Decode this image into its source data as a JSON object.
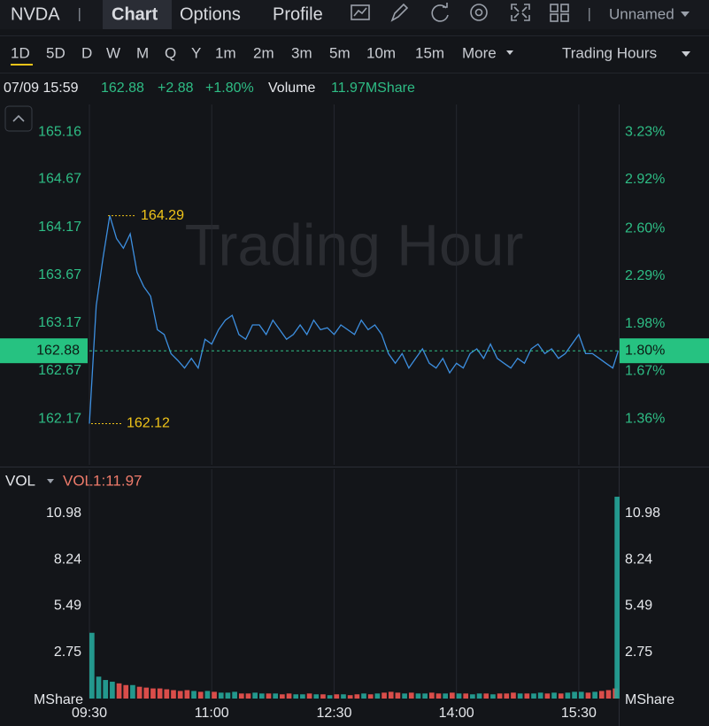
{
  "header": {
    "symbol": "NVDA",
    "tabs": [
      "Chart",
      "Options",
      "Profile"
    ],
    "layout": "Unnamed"
  },
  "toolbar": {
    "periods": [
      "1D",
      "5D",
      "D",
      "W",
      "M",
      "Q",
      "Y",
      "1m",
      "2m",
      "3m",
      "5m",
      "10m",
      "15m",
      "More"
    ],
    "session": "Trading Hours"
  },
  "quote": {
    "time": "07/09 15:59",
    "price": "162.88",
    "change": "+2.88",
    "change_pct": "+1.80%",
    "volume_label": "Volume",
    "volume": "11.97MShare"
  },
  "chart_data": [
    {
      "type": "line",
      "watermark": "Trading Hour",
      "color": "#3d8fe0",
      "x": [
        "09:30",
        "09:35",
        "09:40",
        "09:45",
        "09:50",
        "09:55",
        "10:00",
        "10:05",
        "10:10",
        "10:15",
        "10:20",
        "10:25",
        "10:30",
        "10:35",
        "10:40",
        "10:45",
        "10:50",
        "10:55",
        "11:00",
        "11:05",
        "11:10",
        "11:15",
        "11:20",
        "11:25",
        "11:30",
        "11:35",
        "11:40",
        "11:45",
        "11:50",
        "11:55",
        "12:00",
        "12:05",
        "12:10",
        "12:15",
        "12:20",
        "12:25",
        "12:30",
        "12:35",
        "12:40",
        "12:45",
        "12:50",
        "12:55",
        "13:00",
        "13:05",
        "13:10",
        "13:15",
        "13:20",
        "13:25",
        "13:30",
        "13:35",
        "13:40",
        "13:45",
        "13:50",
        "13:55",
        "14:00",
        "14:05",
        "14:10",
        "14:15",
        "14:20",
        "14:25",
        "14:30",
        "14:35",
        "14:40",
        "14:45",
        "14:50",
        "14:55",
        "15:00",
        "15:05",
        "15:10",
        "15:15",
        "15:20",
        "15:25",
        "15:30",
        "15:35",
        "15:40",
        "15:45",
        "15:50",
        "15:55",
        "15:59"
      ],
      "values": [
        162.12,
        163.35,
        163.85,
        164.29,
        164.05,
        163.95,
        164.1,
        163.7,
        163.55,
        163.45,
        163.1,
        163.05,
        162.85,
        162.78,
        162.7,
        162.8,
        162.7,
        163.0,
        162.95,
        163.1,
        163.2,
        163.25,
        163.05,
        163.0,
        163.15,
        163.15,
        163.05,
        163.2,
        163.1,
        163.0,
        163.05,
        163.15,
        163.05,
        163.2,
        163.1,
        163.12,
        163.05,
        163.15,
        163.1,
        163.05,
        163.2,
        163.1,
        163.15,
        163.05,
        162.85,
        162.75,
        162.85,
        162.7,
        162.8,
        162.9,
        162.75,
        162.7,
        162.8,
        162.65,
        162.75,
        162.7,
        162.85,
        162.9,
        162.8,
        162.95,
        162.8,
        162.75,
        162.7,
        162.8,
        162.75,
        162.9,
        162.95,
        162.85,
        162.9,
        162.8,
        162.85,
        162.95,
        163.05,
        162.85,
        162.85,
        162.8,
        162.75,
        162.7,
        162.88
      ],
      "xlim": [
        "09:30",
        "16:00"
      ],
      "ylim": [
        161.69,
        165.45
      ],
      "yticks": [
        162.17,
        162.67,
        163.17,
        163.67,
        164.17,
        164.67,
        165.16
      ],
      "y2lim": [
        1.06,
        3.41
      ],
      "y2ticks": [
        {
          "value": 1.36,
          "label": "1.36%"
        },
        {
          "value": 1.67,
          "label": "1.67%"
        },
        {
          "value": 1.98,
          "label": "1.98%"
        },
        {
          "value": 2.29,
          "label": "2.29%"
        },
        {
          "value": 2.6,
          "label": "2.60%"
        },
        {
          "value": 2.92,
          "label": "2.92%"
        },
        {
          "value": 3.23,
          "label": "3.23%"
        }
      ],
      "high": 164.29,
      "low": 162.12,
      "last": 162.88,
      "last_pct": {
        "value": 1.8,
        "label": "1.80%"
      },
      "grid": true
    },
    {
      "type": "bar",
      "title": "VOL",
      "indicator": "VOL1:11.97",
      "unit": "MShare",
      "colors": {
        "up": "#26a69a",
        "down": "#ef5350"
      },
      "x": [
        "09:30",
        "09:35",
        "09:40",
        "09:45",
        "09:50",
        "09:55",
        "10:00",
        "10:05",
        "10:10",
        "10:15",
        "10:20",
        "10:25",
        "10:30",
        "10:35",
        "10:40",
        "10:45",
        "10:50",
        "10:55",
        "11:00",
        "11:05",
        "11:10",
        "11:15",
        "11:20",
        "11:25",
        "11:30",
        "11:35",
        "11:40",
        "11:45",
        "11:50",
        "11:55",
        "12:00",
        "12:05",
        "12:10",
        "12:15",
        "12:20",
        "12:25",
        "12:30",
        "12:35",
        "12:40",
        "12:45",
        "12:50",
        "12:55",
        "13:00",
        "13:05",
        "13:10",
        "13:15",
        "13:20",
        "13:25",
        "13:30",
        "13:35",
        "13:40",
        "13:45",
        "13:50",
        "13:55",
        "14:00",
        "14:05",
        "14:10",
        "14:15",
        "14:20",
        "14:25",
        "14:30",
        "14:35",
        "14:40",
        "14:45",
        "14:50",
        "14:55",
        "15:00",
        "15:05",
        "15:10",
        "15:15",
        "15:20",
        "15:25",
        "15:30",
        "15:35",
        "15:40",
        "15:45",
        "15:50",
        "15:55",
        "15:59"
      ],
      "values": [
        3.9,
        1.3,
        1.1,
        1.0,
        0.9,
        0.8,
        0.8,
        0.7,
        0.65,
        0.6,
        0.6,
        0.55,
        0.5,
        0.45,
        0.5,
        0.45,
        0.4,
        0.45,
        0.4,
        0.35,
        0.35,
        0.4,
        0.3,
        0.3,
        0.35,
        0.3,
        0.3,
        0.3,
        0.25,
        0.3,
        0.25,
        0.25,
        0.3,
        0.25,
        0.25,
        0.2,
        0.25,
        0.25,
        0.2,
        0.25,
        0.3,
        0.25,
        0.3,
        0.35,
        0.4,
        0.35,
        0.3,
        0.35,
        0.3,
        0.3,
        0.35,
        0.3,
        0.3,
        0.35,
        0.3,
        0.3,
        0.25,
        0.3,
        0.3,
        0.25,
        0.3,
        0.3,
        0.35,
        0.3,
        0.3,
        0.3,
        0.35,
        0.3,
        0.35,
        0.3,
        0.35,
        0.4,
        0.4,
        0.35,
        0.4,
        0.45,
        0.5,
        0.6,
        11.97
      ],
      "xlim": [
        "09:30",
        "16:00"
      ],
      "xticks": [
        "09:30",
        "11:00",
        "12:30",
        "14:00",
        "15:30"
      ],
      "ylim": [
        0,
        13.6
      ],
      "yticks": [
        2.75,
        5.49,
        8.24,
        10.98
      ]
    }
  ]
}
